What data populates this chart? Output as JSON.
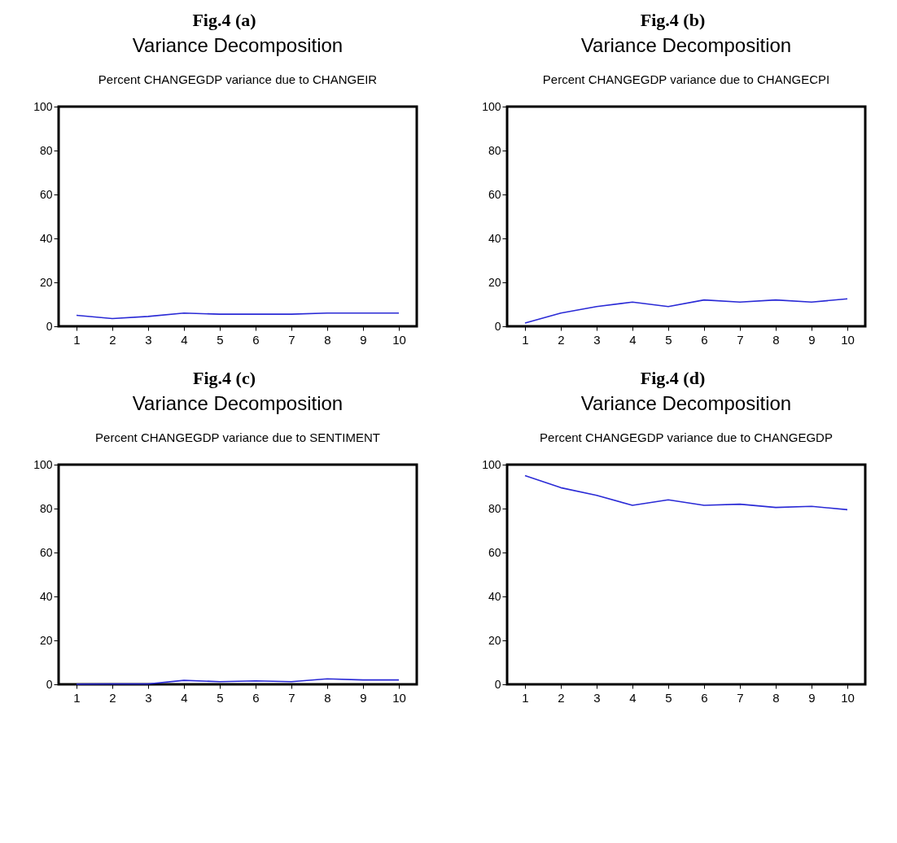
{
  "chart_data": [
    {
      "type": "line",
      "title": "Variance Decomposition",
      "subtitle": "Percent CHANGEGDP variance due to CHANGEIR",
      "annotations": [
        "Fig.4 (a)"
      ],
      "categories": [
        "1",
        "2",
        "3",
        "4",
        "5",
        "6",
        "7",
        "8",
        "9",
        "10"
      ],
      "series": [
        {
          "color": "#2a2ad6",
          "values": [
            5,
            3.5,
            4.5,
            6,
            5.5,
            5.5,
            5.5,
            6,
            6,
            6
          ]
        }
      ],
      "ylim": [
        0,
        100
      ],
      "yticks": [
        0,
        20,
        40,
        60,
        80,
        100
      ]
    },
    {
      "type": "line",
      "title": "Variance Decomposition",
      "subtitle": "Percent CHANGEGDP variance due to CHANGECPI",
      "annotations": [
        "Fig.4 (b)"
      ],
      "categories": [
        "1",
        "2",
        "3",
        "4",
        "5",
        "6",
        "7",
        "8",
        "9",
        "10"
      ],
      "series": [
        {
          "color": "#2a2ad6",
          "values": [
            1.5,
            6,
            9,
            11,
            9,
            12,
            11,
            12,
            11,
            12.5
          ]
        }
      ],
      "ylim": [
        0,
        100
      ],
      "yticks": [
        0,
        20,
        40,
        60,
        80,
        100
      ]
    },
    {
      "type": "line",
      "title": "Variance Decomposition",
      "subtitle": "Percent CHANGEGDP variance due to SENTIMENT",
      "annotations": [
        "Fig.4 (c)"
      ],
      "categories": [
        "1",
        "2",
        "3",
        "4",
        "5",
        "6",
        "7",
        "8",
        "9",
        "10"
      ],
      "series": [
        {
          "color": "#2a2ad6",
          "values": [
            0.1,
            0.2,
            0.2,
            1.8,
            1.2,
            1.6,
            1.2,
            2.5,
            2,
            2
          ]
        }
      ],
      "ylim": [
        0,
        100
      ],
      "yticks": [
        0,
        20,
        40,
        60,
        80,
        100
      ]
    },
    {
      "type": "line",
      "title": "Variance Decomposition",
      "subtitle": "Percent CHANGEGDP variance due to CHANGEGDP",
      "annotations": [
        "Fig.4 (d)"
      ],
      "categories": [
        "1",
        "2",
        "3",
        "4",
        "5",
        "6",
        "7",
        "8",
        "9",
        "10"
      ],
      "series": [
        {
          "color": "#2a2ad6",
          "values": [
            95,
            89.5,
            86,
            81.5,
            84,
            81.5,
            82,
            80.5,
            81,
            79.5
          ]
        }
      ],
      "ylim": [
        0,
        100
      ],
      "yticks": [
        0,
        20,
        40,
        60,
        80,
        100
      ]
    }
  ]
}
